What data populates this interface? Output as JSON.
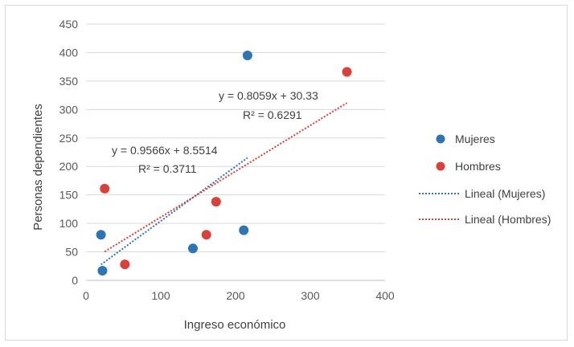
{
  "chart_data": {
    "type": "scatter",
    "title": "",
    "xlabel": "Ingreso económico",
    "ylabel": "Personas dependientes",
    "xlim": [
      0,
      400
    ],
    "ylim": [
      0,
      450
    ],
    "xticks": [
      0,
      100,
      200,
      300,
      400
    ],
    "yticks": [
      0,
      50,
      100,
      150,
      200,
      250,
      300,
      350,
      400,
      450
    ],
    "grid": "horizontal",
    "legend_position": "right",
    "series": [
      {
        "name": "Mujeres",
        "color": "#2e75b6",
        "points": [
          [
            20,
            80
          ],
          [
            22,
            17
          ],
          [
            143,
            56
          ],
          [
            211,
            88
          ],
          [
            216,
            395
          ]
        ],
        "trendline": {
          "name": "Lineal (Mujeres)",
          "slope": 0.9566,
          "intercept": 8.5514,
          "x_range": [
            20,
            216
          ],
          "equation": "y = 0.9566x + 8.5514",
          "r2": "R² = 0.3711"
        }
      },
      {
        "name": "Hombres",
        "color": "#d9413a",
        "points": [
          [
            25,
            161
          ],
          [
            52,
            28
          ],
          [
            161,
            80
          ],
          [
            174,
            138
          ],
          [
            349,
            366
          ]
        ],
        "trendline": {
          "name": "Lineal (Hombres)",
          "slope": 0.8059,
          "intercept": 30.33,
          "x_range": [
            25,
            349
          ],
          "equation": "y = 0.8059x + 30.33",
          "r2": "R² = 0.6291"
        }
      }
    ]
  }
}
